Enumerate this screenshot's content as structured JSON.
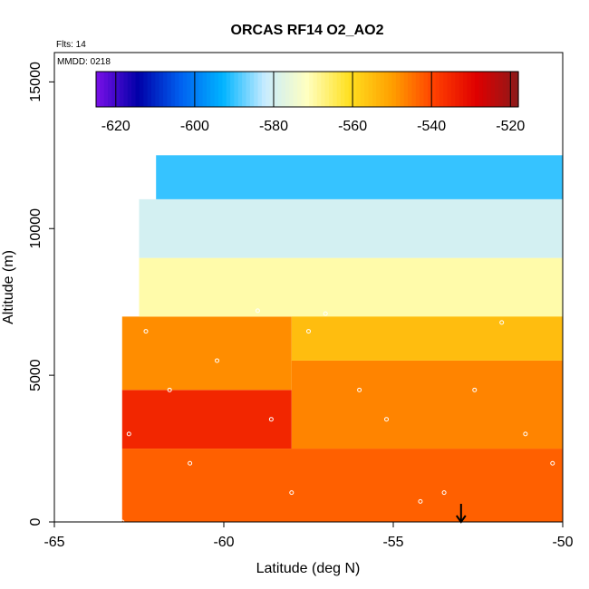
{
  "chart_data": {
    "type": "heatmap",
    "title": "ORCAS RF14 O2_AO2",
    "xlabel": "Latitude (deg N)",
    "ylabel": "Altitude (m)",
    "xlim": [
      -65,
      -50
    ],
    "ylim": [
      0,
      16000
    ],
    "x_ticks": [
      -65,
      -60,
      -55,
      -50
    ],
    "y_ticks": [
      0,
      5000,
      10000,
      15000
    ],
    "colorbar": {
      "min": -625,
      "max": -518,
      "ticks": [
        -620,
        -600,
        -580,
        -560,
        -540,
        -520
      ],
      "placement": "top",
      "palette": [
        "#7a10e8",
        "#0000a8",
        "#0060f0",
        "#00b4ff",
        "#c8ecff",
        "#ffffc0",
        "#ffe020",
        "#ffa000",
        "#ff4000",
        "#e00000",
        "#8b1a1a"
      ]
    },
    "annotations": {
      "flights": "Flts: 14",
      "date": "MMDD: 0218"
    },
    "legend": "none",
    "grid": false,
    "track_marker": "white open circles",
    "arrow_latitude": -53,
    "field_regions": [
      {
        "lat_range": [
          -63.0,
          -50.0
        ],
        "alt_range": [
          0,
          2500
        ],
        "value": -543
      },
      {
        "lat_range": [
          -63.0,
          -58.0
        ],
        "alt_range": [
          2500,
          4500
        ],
        "value": -535
      },
      {
        "lat_range": [
          -58.0,
          -50.0
        ],
        "alt_range": [
          2500,
          5500
        ],
        "value": -547
      },
      {
        "lat_range": [
          -63.0,
          -58.0
        ],
        "alt_range": [
          4500,
          7000
        ],
        "value": -548
      },
      {
        "lat_range": [
          -58.0,
          -50.0
        ],
        "alt_range": [
          5500,
          7200
        ],
        "value": -555
      },
      {
        "lat_range": [
          -62.5,
          -50.0
        ],
        "alt_range": [
          7000,
          9000
        ],
        "value": -570
      },
      {
        "lat_range": [
          -62.5,
          -50.0
        ],
        "alt_range": [
          9000,
          11000
        ],
        "value": -580
      },
      {
        "lat_range": [
          -62.0,
          -50.0
        ],
        "alt_range": [
          11000,
          12500
        ],
        "value": -590
      }
    ]
  }
}
